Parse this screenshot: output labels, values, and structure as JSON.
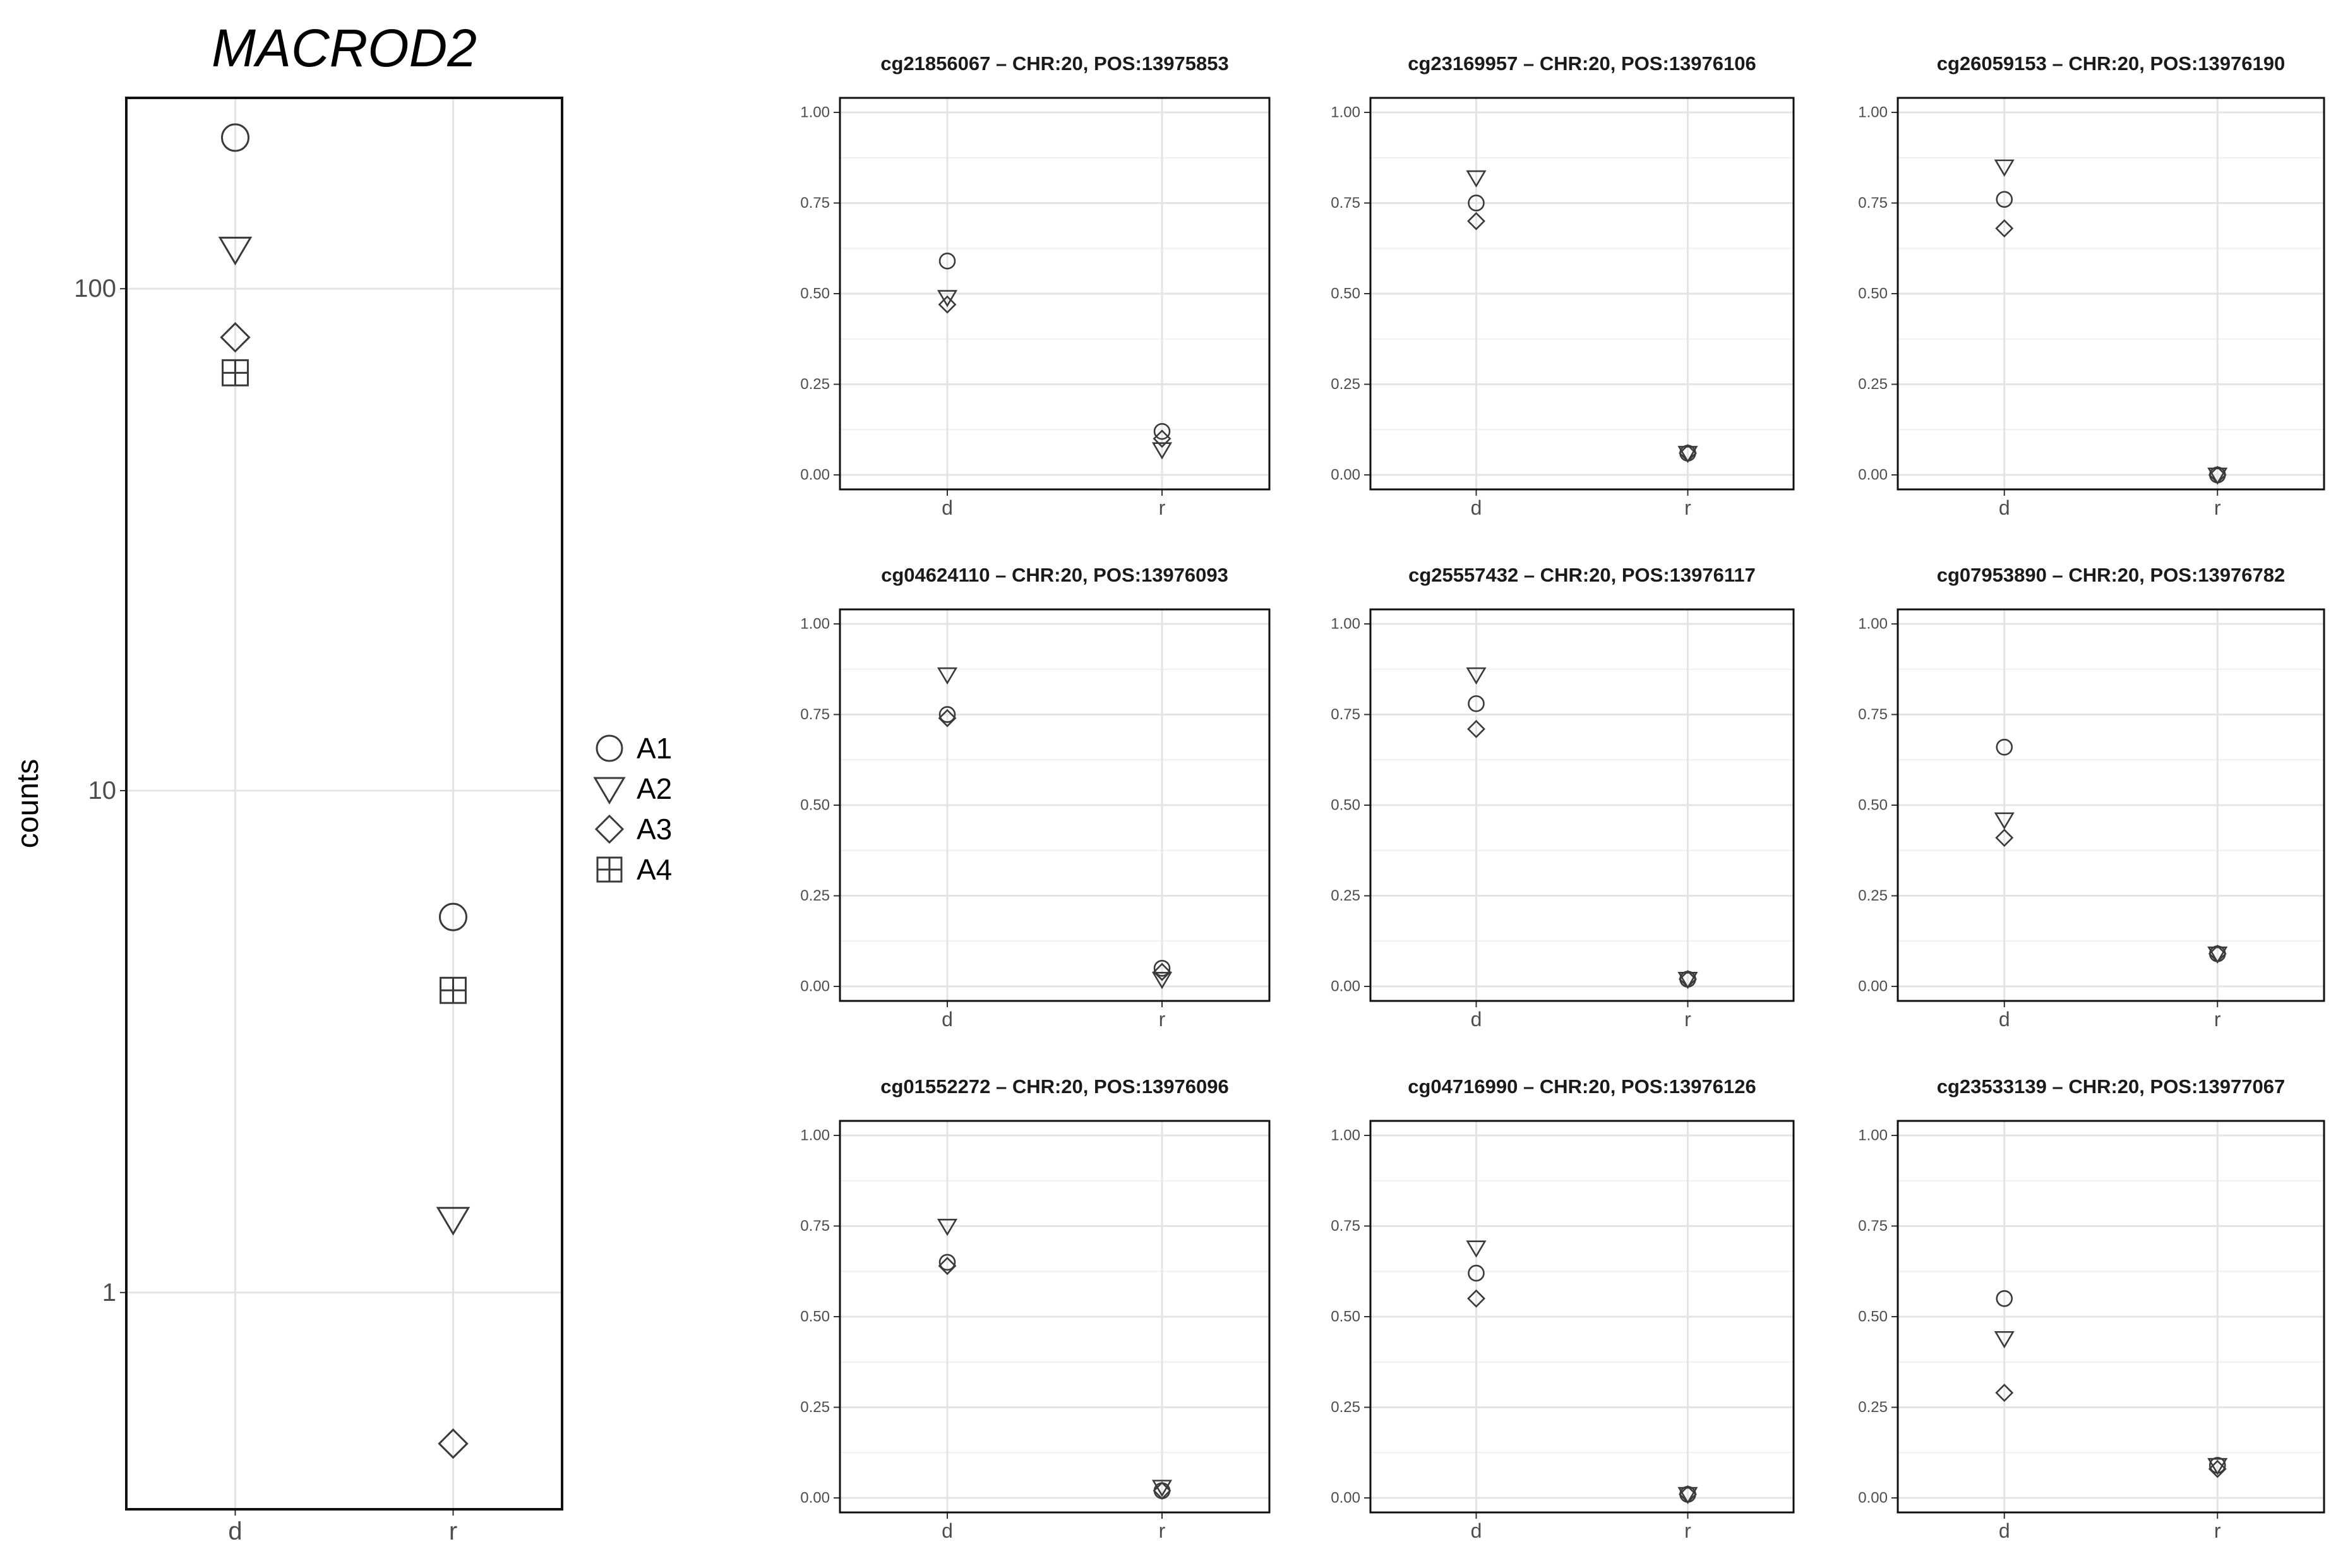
{
  "chart_data": [
    {
      "type": "scatter",
      "title": "MACROD2",
      "xlabel": "",
      "ylabel": "counts",
      "categories": [
        "d",
        "r"
      ],
      "y_scale": "log10",
      "ylim": [
        0.37,
        240
      ],
      "y_ticks": [
        1,
        10,
        100
      ],
      "y_tick_labels": [
        "1",
        "10",
        "100"
      ],
      "grid": true,
      "legend": {
        "placement": "right",
        "entries": [
          "A1",
          "A2",
          "A3",
          "A4"
        ]
      },
      "series": [
        {
          "name": "A1",
          "shape": "circle",
          "values": [
            200,
            5.6
          ]
        },
        {
          "name": "A2",
          "shape": "triangle-down",
          "values": [
            120,
            1.4
          ]
        },
        {
          "name": "A3",
          "shape": "diamond",
          "values": [
            80,
            0.5
          ]
        },
        {
          "name": "A4",
          "shape": "square-cross",
          "values": [
            68,
            4.0
          ]
        }
      ]
    },
    {
      "type": "scatter",
      "title": "cg21856067 – CHR:20, POS:13975853",
      "categories": [
        "d",
        "r"
      ],
      "ylim": [
        -0.04,
        1.04
      ],
      "y_ticks": [
        0,
        0.25,
        0.5,
        0.75,
        1
      ],
      "y_tick_labels": [
        "0.00",
        "0.25",
        "0.50",
        "0.75",
        "1.00"
      ],
      "grid": true,
      "series": [
        {
          "name": "A1",
          "shape": "circle",
          "values": [
            0.59,
            0.12
          ]
        },
        {
          "name": "A2",
          "shape": "triangle-down",
          "values": [
            0.49,
            0.07
          ]
        },
        {
          "name": "A3",
          "shape": "diamond",
          "values": [
            0.47,
            0.1
          ]
        }
      ]
    },
    {
      "type": "scatter",
      "title": "cg23169957 – CHR:20, POS:13976106",
      "categories": [
        "d",
        "r"
      ],
      "ylim": [
        -0.04,
        1.04
      ],
      "y_ticks": [
        0,
        0.25,
        0.5,
        0.75,
        1
      ],
      "y_tick_labels": [
        "0.00",
        "0.25",
        "0.50",
        "0.75",
        "1.00"
      ],
      "grid": true,
      "series": [
        {
          "name": "A1",
          "shape": "circle",
          "values": [
            0.75,
            0.06
          ]
        },
        {
          "name": "A2",
          "shape": "triangle-down",
          "values": [
            0.82,
            0.06
          ]
        },
        {
          "name": "A3",
          "shape": "diamond",
          "values": [
            0.7,
            0.06
          ]
        }
      ]
    },
    {
      "type": "scatter",
      "title": "cg26059153 – CHR:20, POS:13976190",
      "categories": [
        "d",
        "r"
      ],
      "ylim": [
        -0.04,
        1.04
      ],
      "y_ticks": [
        0,
        0.25,
        0.5,
        0.75,
        1
      ],
      "y_tick_labels": [
        "0.00",
        "0.25",
        "0.50",
        "0.75",
        "1.00"
      ],
      "grid": true,
      "series": [
        {
          "name": "A1",
          "shape": "circle",
          "values": [
            0.76,
            0.0
          ]
        },
        {
          "name": "A2",
          "shape": "triangle-down",
          "values": [
            0.85,
            0.0
          ]
        },
        {
          "name": "A3",
          "shape": "diamond",
          "values": [
            0.68,
            0.0
          ]
        }
      ]
    },
    {
      "type": "scatter",
      "title": "cg04624110 – CHR:20, POS:13976093",
      "categories": [
        "d",
        "r"
      ],
      "ylim": [
        -0.04,
        1.04
      ],
      "y_ticks": [
        0,
        0.25,
        0.5,
        0.75,
        1
      ],
      "y_tick_labels": [
        "0.00",
        "0.25",
        "0.50",
        "0.75",
        "1.00"
      ],
      "grid": true,
      "series": [
        {
          "name": "A1",
          "shape": "circle",
          "values": [
            0.75,
            0.05
          ]
        },
        {
          "name": "A2",
          "shape": "triangle-down",
          "values": [
            0.86,
            0.02
          ]
        },
        {
          "name": "A3",
          "shape": "diamond",
          "values": [
            0.74,
            0.04
          ]
        }
      ]
    },
    {
      "type": "scatter",
      "title": "cg25557432 – CHR:20, POS:13976117",
      "categories": [
        "d",
        "r"
      ],
      "ylim": [
        -0.04,
        1.04
      ],
      "y_ticks": [
        0,
        0.25,
        0.5,
        0.75,
        1
      ],
      "y_tick_labels": [
        "0.00",
        "0.25",
        "0.50",
        "0.75",
        "1.00"
      ],
      "grid": true,
      "series": [
        {
          "name": "A1",
          "shape": "circle",
          "values": [
            0.78,
            0.02
          ]
        },
        {
          "name": "A2",
          "shape": "triangle-down",
          "values": [
            0.86,
            0.02
          ]
        },
        {
          "name": "A3",
          "shape": "diamond",
          "values": [
            0.71,
            0.02
          ]
        }
      ]
    },
    {
      "type": "scatter",
      "title": "cg07953890 – CHR:20, POS:13976782",
      "categories": [
        "d",
        "r"
      ],
      "ylim": [
        -0.04,
        1.04
      ],
      "y_ticks": [
        0,
        0.25,
        0.5,
        0.75,
        1
      ],
      "y_tick_labels": [
        "0.00",
        "0.25",
        "0.50",
        "0.75",
        "1.00"
      ],
      "grid": true,
      "series": [
        {
          "name": "A1",
          "shape": "circle",
          "values": [
            0.66,
            0.09
          ]
        },
        {
          "name": "A2",
          "shape": "triangle-down",
          "values": [
            0.46,
            0.09
          ]
        },
        {
          "name": "A3",
          "shape": "diamond",
          "values": [
            0.41,
            0.09
          ]
        }
      ]
    },
    {
      "type": "scatter",
      "title": "cg01552272 – CHR:20, POS:13976096",
      "categories": [
        "d",
        "r"
      ],
      "ylim": [
        -0.04,
        1.04
      ],
      "y_ticks": [
        0,
        0.25,
        0.5,
        0.75,
        1
      ],
      "y_tick_labels": [
        "0.00",
        "0.25",
        "0.50",
        "0.75",
        "1.00"
      ],
      "grid": true,
      "series": [
        {
          "name": "A1",
          "shape": "circle",
          "values": [
            0.65,
            0.02
          ]
        },
        {
          "name": "A2",
          "shape": "triangle-down",
          "values": [
            0.75,
            0.03
          ]
        },
        {
          "name": "A3",
          "shape": "diamond",
          "values": [
            0.64,
            0.02
          ]
        }
      ]
    },
    {
      "type": "scatter",
      "title": "cg04716990 – CHR:20, POS:13976126",
      "categories": [
        "d",
        "r"
      ],
      "ylim": [
        -0.04,
        1.04
      ],
      "y_ticks": [
        0,
        0.25,
        0.5,
        0.75,
        1
      ],
      "y_tick_labels": [
        "0.00",
        "0.25",
        "0.50",
        "0.75",
        "1.00"
      ],
      "grid": true,
      "series": [
        {
          "name": "A1",
          "shape": "circle",
          "values": [
            0.62,
            0.01
          ]
        },
        {
          "name": "A2",
          "shape": "triangle-down",
          "values": [
            0.69,
            0.01
          ]
        },
        {
          "name": "A3",
          "shape": "diamond",
          "values": [
            0.55,
            0.01
          ]
        }
      ]
    },
    {
      "type": "scatter",
      "title": "cg23533139 – CHR:20, POS:13977067",
      "categories": [
        "d",
        "r"
      ],
      "ylim": [
        -0.04,
        1.04
      ],
      "y_ticks": [
        0,
        0.25,
        0.5,
        0.75,
        1
      ],
      "y_tick_labels": [
        "0.00",
        "0.25",
        "0.50",
        "0.75",
        "1.00"
      ],
      "grid": true,
      "series": [
        {
          "name": "A1",
          "shape": "circle",
          "values": [
            0.55,
            0.09
          ]
        },
        {
          "name": "A2",
          "shape": "triangle-down",
          "values": [
            0.44,
            0.09
          ]
        },
        {
          "name": "A3",
          "shape": "diamond",
          "values": [
            0.29,
            0.08
          ]
        }
      ]
    }
  ]
}
